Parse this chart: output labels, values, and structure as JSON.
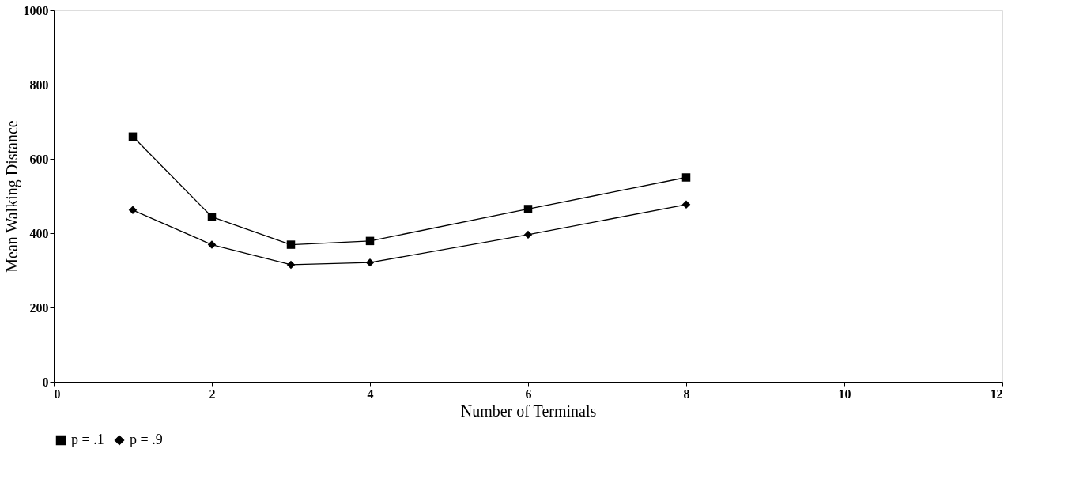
{
  "chart_data": {
    "type": "line",
    "xlabel": "Number of Terminals",
    "ylabel": "Mean Walking Distance",
    "x": [
      1,
      2,
      3,
      4,
      6,
      8
    ],
    "series": [
      {
        "name": "p = .1",
        "color": "#000000",
        "marker": "square",
        "values": [
          660,
          444,
          369,
          379,
          465,
          550
        ]
      },
      {
        "name": "p = .9",
        "color": "#000000",
        "marker": "diamond",
        "values": [
          462,
          369,
          315,
          321,
          396,
          477
        ]
      }
    ],
    "xlim": [
      0,
      12
    ],
    "xticks": [
      0,
      2,
      4,
      6,
      8,
      10,
      12
    ],
    "ylim": [
      0,
      1000
    ],
    "yticks": [
      0,
      200,
      400,
      600,
      800,
      1000
    ],
    "grid": false,
    "legend": "bottom",
    "line_style": "solid"
  }
}
